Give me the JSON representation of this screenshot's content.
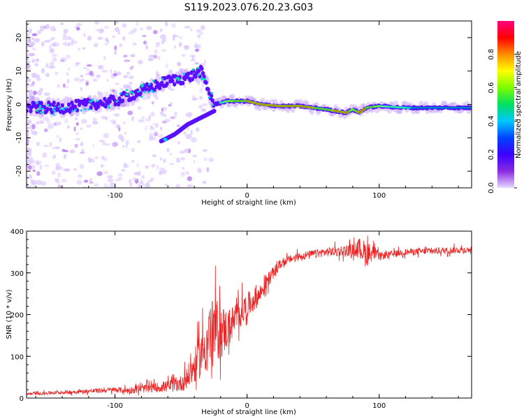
{
  "figure": {
    "title": "S119.2023.076.20.23.G03"
  },
  "chart_data": [
    {
      "type": "heatmap",
      "xlabel": "Height of straight line (km)",
      "ylabel": "Frequency (Hz)",
      "xlim": [
        -167,
        170
      ],
      "ylim": [
        -25,
        25
      ],
      "x_ticks": [
        -100,
        0,
        100
      ],
      "y_ticks": [
        -20,
        -10,
        0,
        10,
        20
      ],
      "colorbar": {
        "label": "Normalized spectral amplitude",
        "ticks": [
          0.0,
          0.2,
          0.4,
          0.6,
          0.8
        ],
        "range": [
          0,
          1
        ],
        "colormap": [
          "#e8d8ff",
          "#8a2be2",
          "#3a00ff",
          "#0044ff",
          "#00c8ff",
          "#00e060",
          "#7cfc00",
          "#ffff00",
          "#ff8c00",
          "#ff0000",
          "#ff0080"
        ]
      },
      "ridge": {
        "x": [
          -165,
          -140,
          -120,
          -100,
          -80,
          -60,
          -45,
          -35,
          -25,
          -15,
          0,
          10,
          25,
          40,
          60,
          75,
          80,
          85,
          90,
          100,
          120,
          140,
          170
        ],
        "frequency": [
          -1,
          -1,
          0,
          1,
          4,
          7,
          8,
          10,
          0,
          1,
          1,
          0,
          -0.5,
          -0.5,
          -1.5,
          -2.5,
          -1.5,
          -2.5,
          -1,
          -0.5,
          -1,
          -1,
          -1
        ],
        "amplitude": [
          0.2,
          0.3,
          0.25,
          0.3,
          0.35,
          0.3,
          0.3,
          0.25,
          0.5,
          0.7,
          0.85,
          0.9,
          0.95,
          0.9,
          0.8,
          0.95,
          0.7,
          0.9,
          0.85,
          0.7,
          0.55,
          0.5,
          0.5
        ]
      },
      "secondary_branch": {
        "x": [
          -65,
          -55,
          -45,
          -35,
          -25
        ],
        "frequency": [
          -11,
          -9,
          -6,
          -4,
          -2
        ]
      }
    },
    {
      "type": "line",
      "xlabel": "Height of straight line (km)",
      "ylabel": "SNR (10 * v/v)",
      "xlim": [
        -167,
        170
      ],
      "ylim": [
        0,
        400
      ],
      "x_ticks": [
        -100,
        0,
        100
      ],
      "y_ticks": [
        0,
        100,
        200,
        300,
        400
      ],
      "color": "#ee2222",
      "series": [
        {
          "x": [
            -167,
            -150,
            -130,
            -110,
            -100,
            -90,
            -80,
            -70,
            -60,
            -50,
            -45,
            -40,
            -35,
            -30,
            -25,
            -20,
            -15,
            -10,
            -5,
            0,
            5,
            10,
            15,
            20,
            25,
            30,
            40,
            50,
            60,
            70,
            80,
            85,
            90,
            95,
            100,
            110,
            120,
            140,
            160,
            170
          ],
          "values": [
            10,
            12,
            15,
            18,
            20,
            18,
            22,
            25,
            28,
            35,
            50,
            75,
            105,
            140,
            165,
            160,
            165,
            185,
            205,
            220,
            235,
            250,
            280,
            300,
            320,
            330,
            340,
            345,
            350,
            352,
            355,
            360,
            345,
            350,
            340,
            345,
            350,
            352,
            355,
            355
          ],
          "noise": [
            4,
            5,
            6,
            7,
            8,
            10,
            12,
            14,
            18,
            25,
            35,
            50,
            70,
            90,
            100,
            85,
            60,
            50,
            45,
            40,
            35,
            30,
            25,
            18,
            14,
            12,
            12,
            12,
            14,
            16,
            18,
            30,
            40,
            25,
            12,
            10,
            10,
            10,
            10,
            10
          ]
        }
      ]
    }
  ]
}
